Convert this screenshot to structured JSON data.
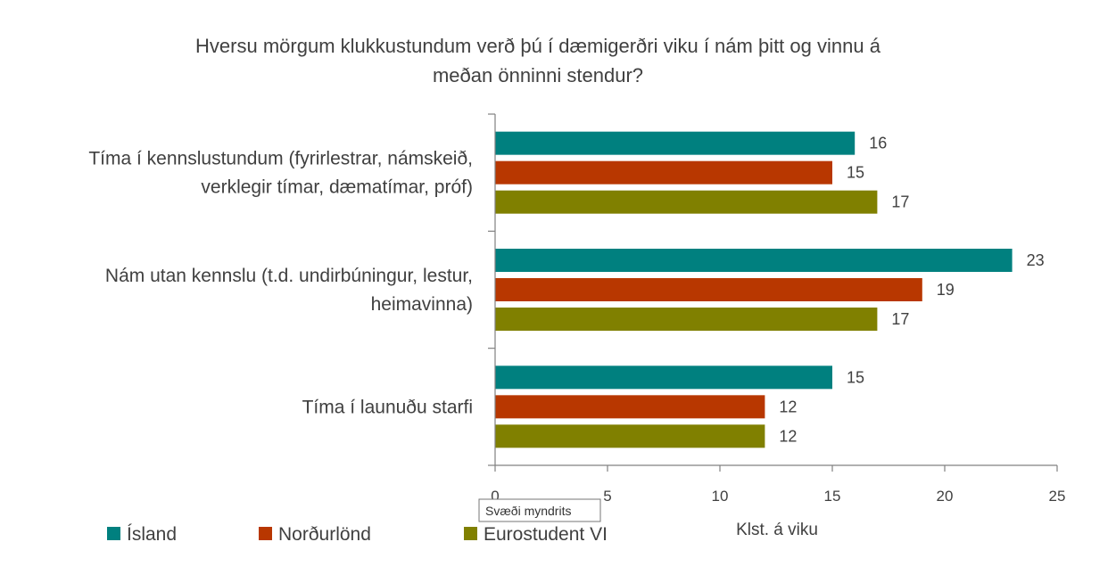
{
  "chart_data": {
    "type": "bar",
    "orientation": "horizontal",
    "title_lines": [
      "Hversu mörgum klukkustundum verð þú í dæmigerðri viku í nám þitt og vinnu á",
      "meðan önninni stendur?"
    ],
    "categories": [
      {
        "lines": [
          "Tíma í kennslustundum (fyrirlestrar, námskeið,",
          "verklegir tímar, dæmatímar, próf)"
        ]
      },
      {
        "lines": [
          "Nám utan kennslu (t.d. undirbúningur, lestur,",
          "heimavinna)"
        ]
      },
      {
        "lines": [
          "Tíma í launuðu starfi"
        ]
      }
    ],
    "series": [
      {
        "name": "Ísland",
        "color": "#00807F",
        "values": [
          16,
          23,
          15
        ]
      },
      {
        "name": "Norðurlönd",
        "color": "#B83700",
        "values": [
          15,
          19,
          12
        ]
      },
      {
        "name": "Eurostudent VI",
        "color": "#808000",
        "values": [
          17,
          17,
          12
        ]
      }
    ],
    "xlabel": "Klst. á viku",
    "xlim": [
      0,
      25
    ],
    "xticks": [
      "0",
      "5",
      "10",
      "15",
      "20",
      "25"
    ],
    "grid": false,
    "legend_position": "bottom-left"
  },
  "tooltip": {
    "text": "Svæði myndrits"
  }
}
